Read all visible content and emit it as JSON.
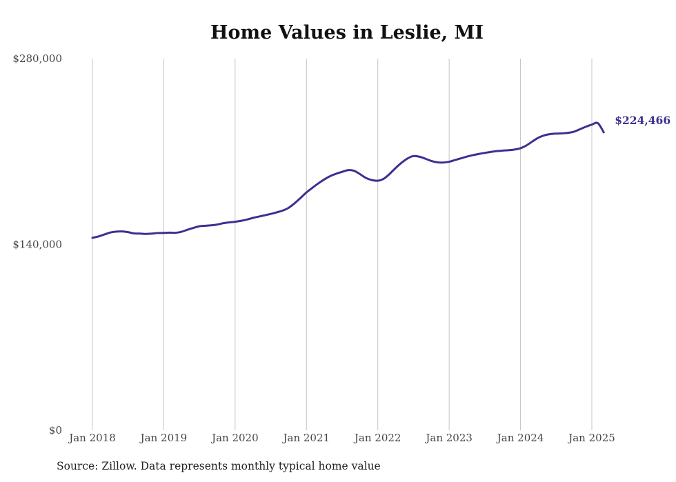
{
  "source_note": "Source: Zillow. Data represents monthly typical home value",
  "chart_data": {
    "type": "line",
    "title": "Home Values in Leslie, MI",
    "xlabel": "",
    "ylabel": "",
    "ylim": [
      0,
      280000
    ],
    "yticks": [
      0,
      140000,
      280000
    ],
    "ytick_labels": [
      "$0",
      "$140,000",
      "$280,000"
    ],
    "xlim": [
      "2018-01",
      "2025-03"
    ],
    "xticks": [
      "2018-01",
      "2019-01",
      "2020-01",
      "2021-01",
      "2022-01",
      "2023-01",
      "2024-01",
      "2025-01"
    ],
    "xtick_labels": [
      "Jan 2018",
      "Jan 2019",
      "Jan 2020",
      "Jan 2021",
      "Jan 2022",
      "Jan 2023",
      "Jan 2024",
      "Jan 2025"
    ],
    "grid": "vertical",
    "line_color": "#3b3190",
    "end_label": "$224,466",
    "series": [
      {
        "x": [
          "2018-01",
          "2018-02",
          "2018-03",
          "2018-04",
          "2018-05",
          "2018-06",
          "2018-07",
          "2018-08",
          "2018-09",
          "2018-10",
          "2018-11",
          "2018-12",
          "2019-01",
          "2019-02",
          "2019-03",
          "2019-04",
          "2019-05",
          "2019-06",
          "2019-07",
          "2019-08",
          "2019-09",
          "2019-10",
          "2019-11",
          "2019-12",
          "2020-01",
          "2020-02",
          "2020-03",
          "2020-04",
          "2020-05",
          "2020-06",
          "2020-07",
          "2020-08",
          "2020-09",
          "2020-10",
          "2020-11",
          "2020-12",
          "2021-01",
          "2021-02",
          "2021-03",
          "2021-04",
          "2021-05",
          "2021-06",
          "2021-07",
          "2021-08",
          "2021-09",
          "2021-10",
          "2021-11",
          "2021-12",
          "2022-01",
          "2022-02",
          "2022-03",
          "2022-04",
          "2022-05",
          "2022-06",
          "2022-07",
          "2022-08",
          "2022-09",
          "2022-10",
          "2022-11",
          "2022-12",
          "2023-01",
          "2023-02",
          "2023-03",
          "2023-04",
          "2023-05",
          "2023-06",
          "2023-07",
          "2023-08",
          "2023-09",
          "2023-10",
          "2023-11",
          "2023-12",
          "2024-01",
          "2024-02",
          "2024-03",
          "2024-04",
          "2024-05",
          "2024-06",
          "2024-07",
          "2024-08",
          "2024-09",
          "2024-10",
          "2024-11",
          "2024-12",
          "2025-01",
          "2025-02",
          "2025-03"
        ],
        "values": [
          145000,
          146000,
          147500,
          149000,
          149700,
          149800,
          149300,
          148300,
          148200,
          147900,
          148200,
          148600,
          148700,
          148900,
          148800,
          149600,
          151100,
          152500,
          153700,
          154100,
          154400,
          155000,
          156000,
          156600,
          157100,
          157800,
          158800,
          160000,
          161000,
          162000,
          163000,
          164200,
          165500,
          167600,
          171000,
          175000,
          179200,
          182700,
          186000,
          189000,
          191500,
          193300,
          194700,
          196000,
          195500,
          193000,
          190100,
          188500,
          188000,
          189500,
          193200,
          197600,
          201600,
          204800,
          206600,
          206100,
          204600,
          202900,
          201900,
          201700,
          202300,
          203600,
          204900,
          206200,
          207300,
          208200,
          209000,
          209700,
          210300,
          210700,
          211000,
          211500,
          212500,
          214600,
          217600,
          220400,
          222200,
          223100,
          223500,
          223700,
          224100,
          225000,
          226800,
          228700,
          230300,
          231400,
          224466
        ]
      }
    ]
  }
}
